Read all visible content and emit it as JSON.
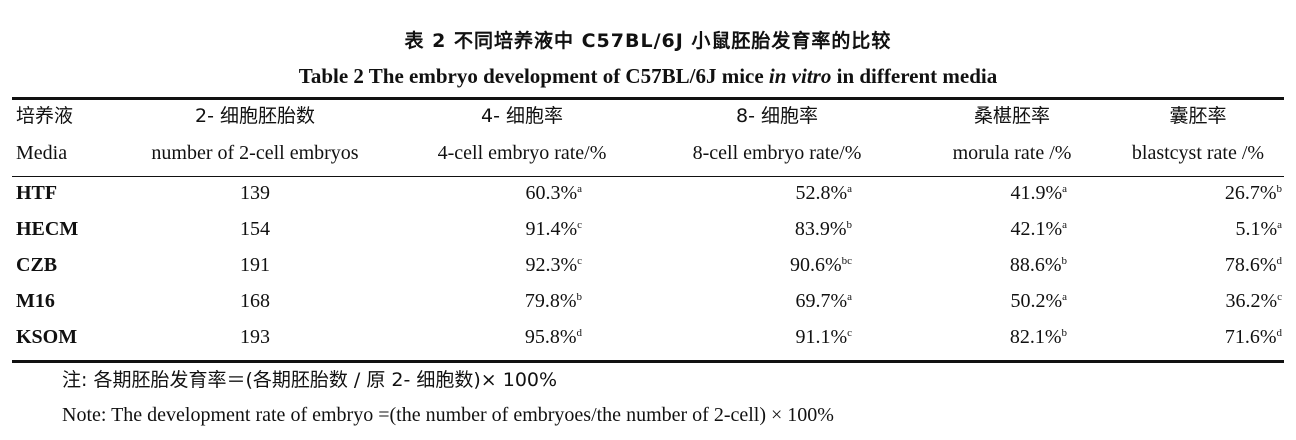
{
  "title_cn": "表 2  不同培养液中 C57BL/6J 小鼠胚胎发育率的比较",
  "title_en": {
    "part1": "Table 2  The embryo development of C57BL/6J mice ",
    "italic": "in vitro",
    "part2": " in different media"
  },
  "header_cn": [
    "培养液",
    "2- 细胞胚胎数",
    "4- 细胞率",
    "8- 细胞率",
    "桑椹胚率",
    "囊胚率"
  ],
  "header_en": [
    "Media",
    "number of 2-cell embryos",
    "4-cell embryo rate/%",
    "8-cell embryo rate/%",
    "morula rate /%",
    "blastcyst rate /%"
  ],
  "rows": [
    {
      "media": "HTF",
      "n": "139",
      "c4": "60.3%",
      "c4s": "a",
      "c8": "52.8%",
      "c8s": "a",
      "mo": "41.9%",
      "mos": "a",
      "bl": "26.7%",
      "bls": "b"
    },
    {
      "media": "HECM",
      "n": "154",
      "c4": "91.4%",
      "c4s": "c",
      "c8": "83.9%",
      "c8s": "b",
      "mo": "42.1%",
      "mos": "a",
      "bl": "5.1%",
      "bls": "a"
    },
    {
      "media": "CZB",
      "n": "191",
      "c4": "92.3%",
      "c4s": "c",
      "c8": "90.6%",
      "c8s": "bc",
      "mo": "88.6%",
      "mos": "b",
      "bl": "78.6%",
      "bls": "d"
    },
    {
      "media": "M16",
      "n": "168",
      "c4": "79.8%",
      "c4s": "b",
      "c8": "69.7%",
      "c8s": "a",
      "mo": "50.2%",
      "mos": "a",
      "bl": "36.2%",
      "bls": "c"
    },
    {
      "media": "KSOM",
      "n": "193",
      "c4": "95.8%",
      "c4s": "d",
      "c8": "91.1%",
      "c8s": "c",
      "mo": "82.1%",
      "mos": "b",
      "bl": "71.6%",
      "bls": "d"
    }
  ],
  "note_cn": "注: 各期胚胎发育率＝(各期胚胎数 / 原 2- 细胞数)× 100%",
  "note_en": "Note: The development rate of embryo =(the number of embryoes/the number of 2-cell) × 100%"
}
